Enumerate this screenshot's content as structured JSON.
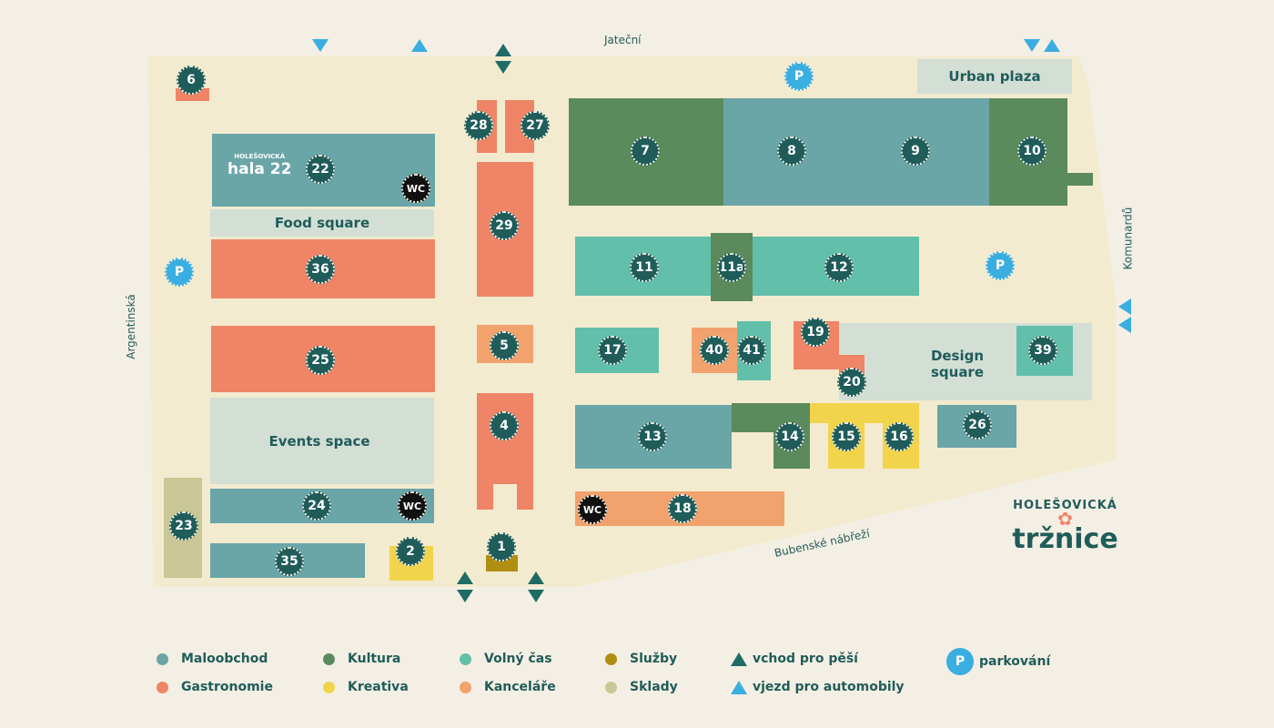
{
  "streets": {
    "jatecni": "Jateční",
    "komunardu": "Komunardů",
    "argentinska": "Argentinská",
    "bubenske": "Bubenské nábřeží"
  },
  "categories": {
    "maloobchod": {
      "label": "Maloobchod",
      "color": "#6aa5a8"
    },
    "gastronomie": {
      "label": "Gastronomie",
      "color": "#ef8466"
    },
    "kultura": {
      "label": "Kultura",
      "color": "#5b8a5c"
    },
    "kreativa": {
      "label": "Kreativa",
      "color": "#f1d44c"
    },
    "volny_cas": {
      "label": "Volný čas",
      "color": "#62bfaa"
    },
    "kancelare": {
      "label": "Kanceláře",
      "color": "#f2a26d"
    },
    "sluzby": {
      "label": "Služby",
      "color": "#b08e12"
    },
    "sklady": {
      "label": "Sklady",
      "color": "#c8c795"
    }
  },
  "legend_extra": {
    "pedestrian": "vchod pro pěší",
    "car": "vjezd pro automobily",
    "parking": "parkování",
    "parking_icon": "P"
  },
  "units": [
    {
      "id": "6",
      "category": "gastronomie"
    },
    {
      "id": "22",
      "category": "maloobchod"
    },
    {
      "id": "36",
      "category": "gastronomie"
    },
    {
      "id": "25",
      "category": "gastronomie"
    },
    {
      "id": "24",
      "category": "maloobchod"
    },
    {
      "id": "35",
      "category": "maloobchod"
    },
    {
      "id": "2",
      "category": "kreativa"
    },
    {
      "id": "23",
      "category": "sklady"
    },
    {
      "id": "28",
      "category": "gastronomie"
    },
    {
      "id": "27",
      "category": "gastronomie"
    },
    {
      "id": "29",
      "category": "gastronomie"
    },
    {
      "id": "5",
      "category": "kancelare"
    },
    {
      "id": "4",
      "category": "gastronomie"
    },
    {
      "id": "1",
      "category": "sluzby"
    },
    {
      "id": "7",
      "category": "kultura"
    },
    {
      "id": "8",
      "category": "maloobchod"
    },
    {
      "id": "9",
      "category": "maloobchod"
    },
    {
      "id": "10",
      "category": "kultura"
    },
    {
      "id": "11",
      "category": "volny_cas"
    },
    {
      "id": "11a",
      "category": "kultura"
    },
    {
      "id": "12",
      "category": "volny_cas"
    },
    {
      "id": "17",
      "category": "volny_cas"
    },
    {
      "id": "40",
      "category": "kancelare"
    },
    {
      "id": "41",
      "category": "volny_cas"
    },
    {
      "id": "19",
      "category": "gastronomie"
    },
    {
      "id": "20",
      "category": "gastronomie"
    },
    {
      "id": "39",
      "category": "volny_cas"
    },
    {
      "id": "13",
      "category": "maloobchod"
    },
    {
      "id": "14",
      "category": "kultura"
    },
    {
      "id": "15",
      "category": "kreativa"
    },
    {
      "id": "16",
      "category": "kreativa"
    },
    {
      "id": "26",
      "category": "maloobchod"
    },
    {
      "id": "18",
      "category": "kancelare"
    }
  ],
  "areas": {
    "food_square": "Food square",
    "events_space": "Events space",
    "urban_plaza": "Urban plaza",
    "design_square_1": "Design",
    "design_square_2": "square"
  },
  "facilities": {
    "wc": "WC",
    "parking": "P"
  },
  "hala_logo": {
    "top": "HOLEŠOVICKÁ",
    "bottom": "hala 22"
  },
  "brand": {
    "top": "HOLEŠOVICKÁ",
    "bottom": "tržnice"
  },
  "colors": {
    "ground": "#f3ebcf",
    "open_area": "#d3dfd5",
    "badge": "#1f5c5a",
    "parking": "#3aaee0",
    "pedestrian_arrow": "#1f6b66",
    "car_arrow": "#3aaee0"
  }
}
